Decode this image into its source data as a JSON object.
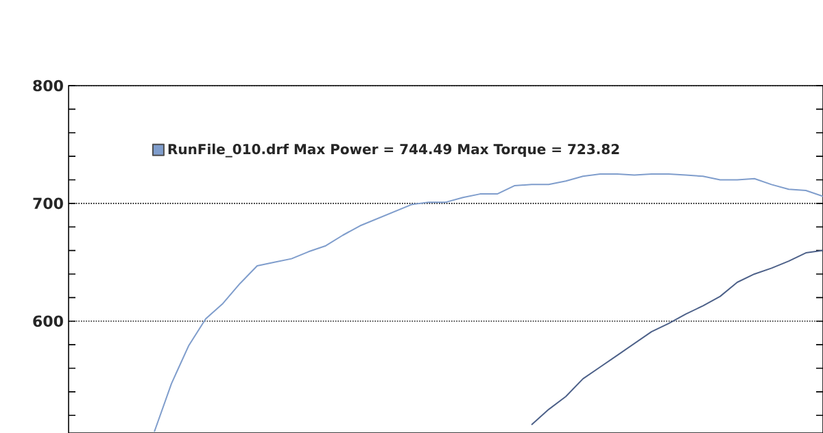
{
  "chart_data": {
    "type": "line",
    "categories": [
      null,
      null,
      null,
      null,
      null,
      null,
      null,
      null,
      null,
      null,
      null,
      null,
      null,
      null,
      null,
      null,
      null,
      null,
      null,
      null,
      null,
      null,
      null,
      null,
      null,
      null,
      null,
      null,
      null,
      null,
      null,
      null,
      null,
      null,
      null,
      null,
      null,
      null,
      null,
      null,
      null,
      null,
      null,
      null,
      null
    ],
    "ylim": [
      505,
      800
    ],
    "yticks": [
      {
        "value": 520,
        "label": null
      },
      {
        "value": 540,
        "label": null
      },
      {
        "value": 560,
        "label": null
      },
      {
        "value": 580,
        "label": null
      },
      600,
      {
        "value": 620,
        "label": null
      },
      {
        "value": 640,
        "label": null
      },
      {
        "value": 660,
        "label": null
      },
      {
        "value": 680,
        "label": null
      },
      700,
      {
        "value": 720,
        "label": null
      },
      {
        "value": 740,
        "label": null
      },
      {
        "value": 760,
        "label": null
      },
      {
        "value": 780,
        "label": null
      },
      800
    ],
    "grid": "y",
    "legend": "top left",
    "line_style": "solid",
    "marker": "none",
    "series": [
      {
        "name": "RunFile_010.drf Max Power = 744.49     Max Torque = 723.82",
        "color": "#7f9dcc",
        "values": [
          null,
          null,
          null,
          null,
          null,
          506,
          547,
          579,
          602,
          615,
          632,
          647,
          650,
          653,
          659,
          664,
          673,
          681,
          687,
          693,
          699,
          701,
          701,
          705,
          708,
          708,
          715,
          716,
          716,
          719,
          723,
          725,
          725,
          724,
          725,
          725,
          724,
          723,
          720,
          720,
          721,
          716,
          712,
          711,
          706
        ]
      },
      {
        "color": "#4d6189",
        "values": [
          null,
          null,
          null,
          null,
          null,
          null,
          null,
          null,
          null,
          null,
          null,
          null,
          null,
          null,
          null,
          null,
          null,
          null,
          null,
          null,
          null,
          null,
          null,
          null,
          null,
          null,
          null,
          512,
          525,
          536,
          551,
          561,
          571,
          581,
          591,
          598,
          606,
          613,
          621,
          633,
          640,
          645,
          651,
          658,
          660
        ]
      }
    ]
  }
}
